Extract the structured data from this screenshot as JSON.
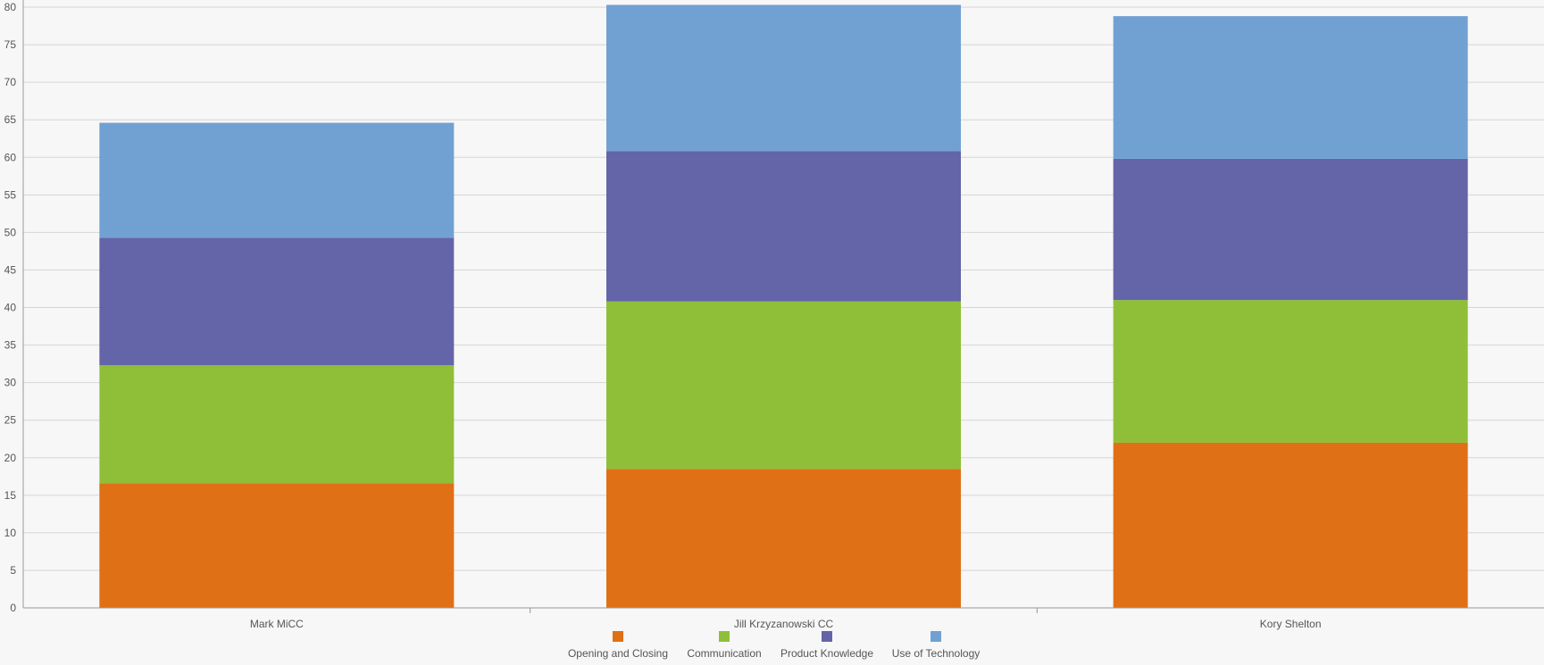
{
  "chart_data": {
    "type": "bar",
    "stacked": true,
    "categories": [
      "Mark MiCC",
      "Jill Krzyzanowski CC",
      "Kory Shelton"
    ],
    "series": [
      {
        "name": "Opening and Closing",
        "color": "#e07016",
        "values": [
          16.6,
          18.5,
          22.0
        ]
      },
      {
        "name": "Communication",
        "color": "#8fbf38",
        "values": [
          15.7,
          22.3,
          19.0
        ]
      },
      {
        "name": "Product Knowledge",
        "color": "#6464a8",
        "values": [
          17.0,
          20.0,
          18.8
        ]
      },
      {
        "name": "Use of Technology",
        "color": "#71a1d2",
        "values": [
          15.3,
          19.5,
          19.0
        ]
      }
    ],
    "ylim": [
      0,
      80
    ],
    "yticks": [
      0,
      5,
      10,
      15,
      20,
      25,
      30,
      35,
      40,
      45,
      50,
      55,
      60,
      65,
      70,
      75,
      80
    ],
    "grid": true,
    "legend_position": "bottom"
  }
}
